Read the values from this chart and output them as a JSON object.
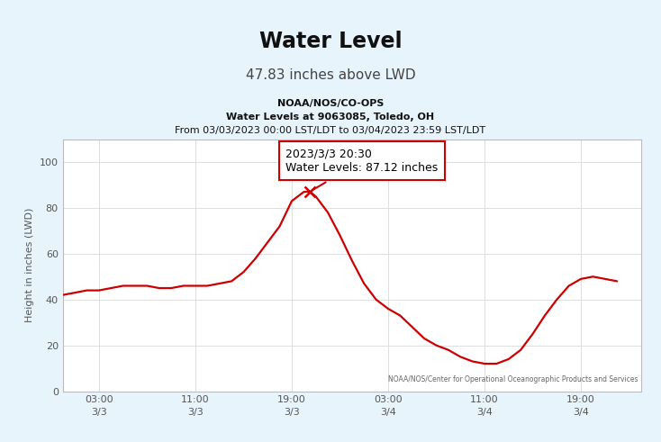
{
  "title": "Water Level",
  "subtitle": "47.83 inches above LWD",
  "chart_title_line1": "NOAA/NOS/CO-OPS",
  "chart_title_line2": "Water Levels at 9063085, Toledo, OH",
  "chart_title_line3": "From 03/03/2023 00:00 LST/LDT to 03/04/2023 23:59 LST/LDT",
  "ylabel": "Height in inches (LWD)",
  "watermark": "NOAA/NOS/Center for Operational Oceanographic Products and Services",
  "tooltip_title": "2023/3/3 20:30",
  "tooltip_body": "Water Levels: 87.12 inches",
  "background_color": "#e8f4fb",
  "plot_bg_color": "#ffffff",
  "line_color": "#cc0000",
  "tooltip_x_hours": 20.5,
  "tooltip_y": 87.12,
  "x_ticks_hours": [
    3,
    11,
    19,
    27,
    35,
    43
  ],
  "x_tick_labels": [
    "03:00\n3/3",
    "11:00\n3/3",
    "19:00\n3/3",
    "03:00\n3/4",
    "11:00\n3/4",
    "19:00\n3/4"
  ],
  "ylim": [
    0,
    110
  ],
  "yticks": [
    0,
    20,
    40,
    60,
    80,
    100
  ],
  "time_hours": [
    0,
    1,
    2,
    3,
    4,
    5,
    6,
    7,
    8,
    9,
    10,
    11,
    12,
    13,
    14,
    15,
    16,
    17,
    18,
    19,
    20,
    20.5,
    21,
    22,
    23,
    24,
    25,
    26,
    27,
    28,
    29,
    30,
    31,
    32,
    33,
    34,
    35,
    36,
    37,
    38,
    39,
    40,
    41,
    42,
    43,
    44,
    45,
    46
  ],
  "values": [
    42,
    43,
    44,
    44,
    45,
    46,
    46,
    46,
    45,
    45,
    46,
    46,
    46,
    47,
    48,
    52,
    58,
    65,
    72,
    83,
    87,
    87.12,
    85,
    78,
    68,
    57,
    47,
    40,
    36,
    33,
    28,
    23,
    20,
    18,
    15,
    13,
    12,
    12,
    14,
    18,
    25,
    33,
    40,
    46,
    49,
    50,
    49,
    48
  ]
}
